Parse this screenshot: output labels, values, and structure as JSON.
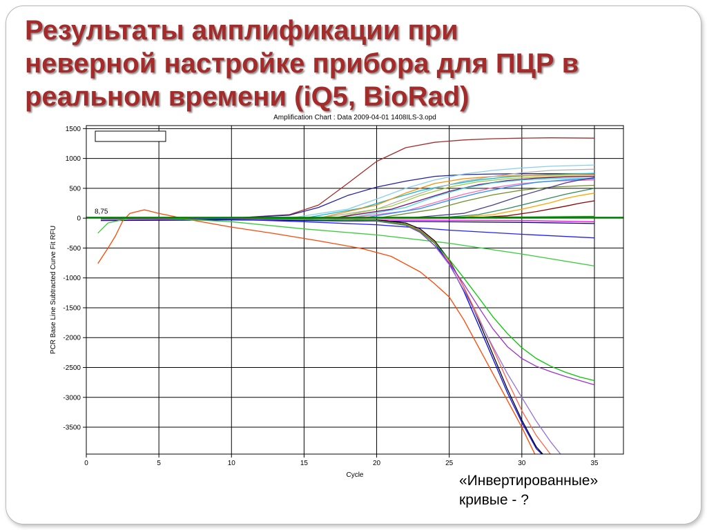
{
  "slide": {
    "title": "Результаты амплификации при\nневерной настройке прибора для ПЦР в\nреальном времени (iQ5, BioRad)",
    "caption": "«Инвертированные»\nкривые - ?",
    "title_color": "#a52a2a"
  },
  "chart_data": {
    "type": "line",
    "title": "Amplification Chart : Data 2009-04-01 1408ILS-3.opd",
    "xlabel": "Cycle",
    "ylabel": "PCR Base Line Subtracted Curve Fit RFU",
    "xlim": [
      0,
      37
    ],
    "ylim": [
      -3950,
      1550
    ],
    "xticks": [
      0,
      5,
      10,
      15,
      20,
      25,
      30,
      35
    ],
    "yticks": [
      1500,
      1000,
      500,
      0,
      -500,
      -1000,
      -1500,
      -2000,
      -2500,
      -3000,
      -3500
    ],
    "grid": true,
    "threshold": {
      "value": 8.75,
      "label": "8,75",
      "color": "#008000"
    },
    "series": [
      {
        "color": "#a52a2a",
        "x": [
          1,
          5,
          10,
          14,
          16,
          18,
          20,
          22,
          24,
          26,
          28,
          30,
          32,
          35
        ],
        "y": [
          0,
          0,
          0,
          60,
          220,
          580,
          950,
          1180,
          1270,
          1310,
          1330,
          1340,
          1345,
          1340
        ]
      },
      {
        "color": "#2020a0",
        "x": [
          1,
          10,
          14,
          16,
          18,
          20,
          22,
          24,
          26,
          28,
          30,
          35
        ],
        "y": [
          0,
          0,
          50,
          180,
          380,
          520,
          620,
          700,
          730,
          740,
          745,
          745
        ]
      },
      {
        "color": "#87ceeb",
        "x": [
          1,
          14,
          18,
          20,
          22,
          24,
          26,
          28,
          30,
          32,
          35
        ],
        "y": [
          0,
          0,
          150,
          320,
          500,
          640,
          740,
          800,
          840,
          870,
          890
        ]
      },
      {
        "color": "#00bcd4",
        "x": [
          1,
          15,
          19,
          21,
          23,
          25,
          27,
          29,
          31,
          33,
          35
        ],
        "y": [
          0,
          0,
          170,
          320,
          460,
          560,
          640,
          690,
          720,
          740,
          750
        ]
      },
      {
        "color": "#ff8c00",
        "x": [
          1,
          16,
          20,
          22,
          24,
          26,
          28,
          30,
          32,
          35
        ],
        "y": [
          0,
          0,
          220,
          420,
          580,
          660,
          700,
          715,
          720,
          725
        ]
      },
      {
        "color": "#b0b0b0",
        "x": [
          1,
          16,
          20,
          22,
          24,
          26,
          28,
          30,
          32,
          35
        ],
        "y": [
          0,
          0,
          150,
          330,
          500,
          620,
          700,
          760,
          800,
          820
        ]
      },
      {
        "color": "#9acd32",
        "x": [
          1,
          17,
          21,
          23,
          25,
          27,
          29,
          31,
          33,
          35
        ],
        "y": [
          0,
          0,
          200,
          380,
          520,
          610,
          660,
          690,
          700,
          705
        ]
      },
      {
        "color": "#800080",
        "x": [
          1,
          17,
          21,
          23,
          25,
          27,
          29,
          31,
          33,
          35
        ],
        "y": [
          0,
          0,
          150,
          300,
          450,
          560,
          630,
          670,
          690,
          700
        ]
      },
      {
        "color": "#40e0d0",
        "x": [
          1,
          18,
          22,
          24,
          26,
          28,
          30,
          32,
          35
        ],
        "y": [
          0,
          0,
          180,
          360,
          500,
          590,
          640,
          660,
          670
        ]
      },
      {
        "color": "#ff69b4",
        "x": [
          1,
          18,
          22,
          24,
          26,
          28,
          30,
          32,
          35
        ],
        "y": [
          0,
          0,
          120,
          260,
          400,
          510,
          580,
          620,
          640
        ]
      },
      {
        "color": "#1e90ff",
        "x": [
          1,
          19,
          23,
          25,
          27,
          29,
          31,
          33,
          35
        ],
        "y": [
          0,
          0,
          160,
          300,
          420,
          520,
          600,
          640,
          660
        ]
      },
      {
        "color": "#6b8e23",
        "x": [
          1,
          20,
          24,
          26,
          28,
          30,
          32,
          35
        ],
        "y": [
          0,
          0,
          150,
          280,
          390,
          470,
          520,
          550
        ]
      },
      {
        "color": "#483d8b",
        "x": [
          1,
          22,
          26,
          28,
          30,
          32,
          33,
          34,
          35
        ],
        "y": [
          0,
          0,
          80,
          220,
          380,
          520,
          590,
          640,
          680
        ]
      },
      {
        "color": "#2e8b57",
        "x": [
          1,
          24,
          27,
          29,
          31,
          33,
          35
        ],
        "y": [
          0,
          0,
          60,
          160,
          280,
          400,
          500
        ]
      },
      {
        "color": "#ffa500",
        "x": [
          1,
          25,
          28,
          30,
          32,
          33,
          34,
          35
        ],
        "y": [
          0,
          0,
          60,
          150,
          260,
          330,
          380,
          420
        ]
      },
      {
        "color": "#8b0000",
        "x": [
          1,
          26,
          29,
          31,
          33,
          34,
          35
        ],
        "y": [
          0,
          0,
          40,
          110,
          200,
          250,
          290
        ]
      },
      {
        "color": "#ff00ff",
        "x": [
          1,
          10,
          20,
          30,
          35
        ],
        "y": [
          -20,
          -15,
          -30,
          -40,
          -60
        ]
      },
      {
        "color": "#000080",
        "x": [
          1,
          10,
          20,
          30,
          35
        ],
        "y": [
          -40,
          -30,
          -50,
          -70,
          -90
        ]
      },
      {
        "color": "#00aa00",
        "x": [
          1,
          10,
          20,
          30,
          35
        ],
        "y": [
          -10,
          0,
          10,
          20,
          30
        ]
      },
      {
        "color": "#2020ff",
        "x": [
          1,
          5,
          10,
          15,
          20,
          25,
          30,
          35
        ],
        "y": [
          0,
          0,
          -20,
          -60,
          -110,
          -200,
          -270,
          -330
        ]
      },
      {
        "color": "#ff4500",
        "x": [
          0.8,
          1.5,
          2,
          2.5,
          3,
          4,
          5,
          7,
          10,
          13,
          16,
          19,
          21,
          23,
          24,
          25,
          26,
          27,
          28,
          29,
          30,
          31
        ],
        "y": [
          -760,
          -500,
          -300,
          -50,
          80,
          140,
          80,
          -20,
          -150,
          -260,
          -380,
          -510,
          -640,
          -900,
          -1100,
          -1320,
          -1700,
          -2150,
          -2600,
          -3050,
          -3500,
          -4000
        ]
      },
      {
        "color": "#32cd32",
        "x": [
          0.8,
          1.5,
          3,
          5,
          10,
          15,
          20,
          25,
          30,
          35
        ],
        "y": [
          -250,
          -80,
          0,
          0,
          -60,
          -180,
          -280,
          -420,
          -600,
          -800
        ]
      },
      {
        "color": "#000000",
        "x": [
          1,
          5,
          10,
          15,
          20,
          22,
          23,
          24,
          25,
          26,
          27,
          28,
          29,
          30,
          31,
          32
        ],
        "y": [
          0,
          0,
          0,
          -20,
          -30,
          -80,
          -180,
          -380,
          -700,
          -1150,
          -1700,
          -2280,
          -2860,
          -3380,
          -3830,
          -4100
        ]
      },
      {
        "color": "#0000ff",
        "x": [
          1,
          5,
          10,
          15,
          20,
          22,
          23,
          24,
          25,
          26,
          27,
          28,
          29,
          30,
          31,
          32
        ],
        "y": [
          0,
          0,
          0,
          -20,
          -40,
          -100,
          -210,
          -420,
          -760,
          -1220,
          -1780,
          -2350,
          -2920,
          -3420,
          -3860,
          -4100
        ]
      },
      {
        "color": "#ff6347",
        "x": [
          1,
          5,
          10,
          15,
          20,
          22,
          23,
          24,
          25,
          26,
          27,
          28,
          29,
          30,
          31,
          32,
          33
        ],
        "y": [
          0,
          0,
          0,
          -20,
          -40,
          -100,
          -200,
          -400,
          -720,
          -1150,
          -1650,
          -2180,
          -2720,
          -3220,
          -3640,
          -3960,
          -4100
        ]
      },
      {
        "color": "#9370db",
        "x": [
          1,
          5,
          10,
          15,
          20,
          22,
          23,
          24,
          25,
          26,
          27,
          28,
          29,
          30,
          31,
          32,
          33
        ],
        "y": [
          0,
          0,
          0,
          -20,
          -40,
          -120,
          -230,
          -460,
          -780,
          -1200,
          -1680,
          -2150,
          -2600,
          -3000,
          -3400,
          -3750,
          -4050
        ]
      },
      {
        "color": "#9932cc",
        "x": [
          1,
          5,
          10,
          15,
          20,
          22,
          23,
          24,
          25,
          26,
          27,
          28,
          29,
          30,
          31,
          32,
          33,
          34,
          35
        ],
        "y": [
          0,
          0,
          0,
          -20,
          -50,
          -120,
          -240,
          -460,
          -750,
          -1100,
          -1480,
          -1850,
          -2150,
          -2350,
          -2480,
          -2570,
          -2650,
          -2720,
          -2790
        ]
      },
      {
        "color": "#00c800",
        "x": [
          1,
          5,
          10,
          15,
          20,
          22,
          23,
          24,
          25,
          26,
          27,
          28,
          29,
          30,
          31,
          32,
          33,
          34,
          35
        ],
        "y": [
          0,
          0,
          0,
          -20,
          -40,
          -110,
          -220,
          -420,
          -690,
          -1000,
          -1320,
          -1650,
          -1930,
          -2170,
          -2350,
          -2480,
          -2580,
          -2660,
          -2720
        ]
      }
    ]
  }
}
